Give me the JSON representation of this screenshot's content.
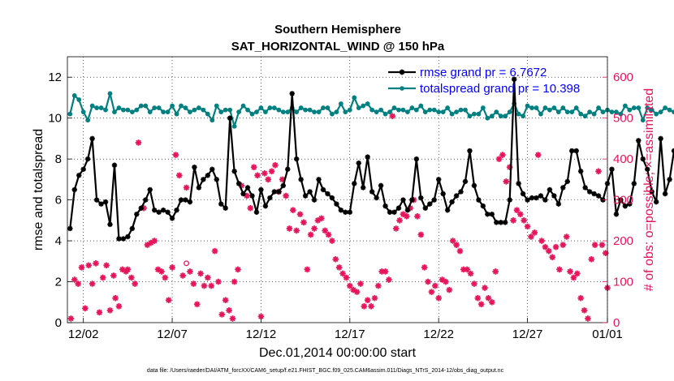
{
  "chart_data": {
    "type": "line",
    "title": "Southern Hemisphere",
    "subtitle": "SAT_HORIZONTAL_WIND @ 150 hPa",
    "xlabel": "Dec.01,2014 00:00:00 start",
    "ylabel": "rmse and totalspread",
    "ylabel_right": "# of obs: o=possible; ×=assimilated",
    "footnote": "data file: /Users/raeder/DAI/ATM_forcXX/CAM6_setup/f.e21.FHIST_BGC.f09_025.CAM6assim.011/Diags_NTrS_2014-12/obs_diag_output.nc",
    "xlim": [
      0.6,
      31.0
    ],
    "ylim": [
      0,
      13
    ],
    "ylim_right": [
      0,
      650
    ],
    "x_ticks": [
      1.5,
      6.5,
      11.5,
      16.5,
      21.5,
      26.5,
      31.0
    ],
    "x_tick_labels": [
      "12/02",
      "12/07",
      "12/12",
      "12/17",
      "12/22",
      "12/27",
      "01/01"
    ],
    "y_ticks": [
      0,
      2,
      4,
      6,
      8,
      10,
      12
    ],
    "y_ticks_right": [
      0,
      100,
      200,
      300,
      400,
      500,
      600
    ],
    "legend_position": "top-right",
    "series": [
      {
        "name": "rmse grand pr = 6.7672",
        "color": "#000000",
        "marker": "*",
        "x_start": 0.75,
        "x_step": 0.25,
        "values": [
          4.6,
          6.5,
          7.2,
          7.5,
          8.0,
          9.0,
          6.0,
          5.8,
          5.9,
          4.8,
          7.7,
          4.1,
          4.1,
          4.2,
          4.6,
          5.3,
          5.6,
          6.0,
          6.5,
          5.5,
          5.4,
          5.5,
          5.4,
          5.1,
          5.5,
          6.0,
          6.0,
          5.9,
          7.6,
          6.6,
          7.0,
          7.2,
          7.5,
          7.0,
          5.8,
          5.6,
          10.0,
          7.4,
          6.8,
          6.3,
          6.6,
          6.2,
          5.4,
          6.5,
          5.7,
          6.1,
          6.4,
          6.4,
          6.7,
          7.5,
          11.2,
          8.0,
          7.0,
          6.2,
          6.4,
          6.0,
          7.0,
          6.5,
          6.3,
          6.1,
          5.8,
          5.5,
          5.4,
          5.4,
          6.8,
          7.8,
          6.6,
          8.1,
          6.4,
          6.1,
          6.7,
          5.7,
          5.4,
          5.4,
          5.6,
          6.0,
          5.5,
          6.0,
          8.0,
          6.1,
          5.6,
          5.8,
          6.0,
          7.0,
          6.3,
          5.5,
          5.9,
          6.2,
          6.4,
          6.9,
          8.4,
          6.7,
          6.0,
          5.7,
          5.3,
          5.3,
          4.9,
          4.9,
          4.9,
          6.0,
          11.9,
          6.8,
          6.3,
          6.0,
          6.1,
          6.1,
          6.2,
          6.0,
          6.5,
          6.2,
          5.8,
          6.6,
          6.9,
          8.4,
          8.4,
          7.4,
          6.6,
          6.4,
          6.3,
          6.2,
          6.0,
          6.8,
          7.5,
          5.3,
          6.0,
          5.7,
          5.8,
          6.8,
          8.9,
          8.0,
          7.5,
          6.4,
          5.9,
          9.0,
          6.3,
          7.0,
          8.4,
          7.8,
          12.2,
          7.4,
          6.8,
          6.3,
          7.5,
          6.8,
          6.5,
          6.8,
          7.1,
          6.5,
          6.3,
          5.7,
          5.5,
          5.6,
          5.5,
          5.3,
          5.3,
          5.5,
          5.7,
          5.9,
          6.3,
          6.8,
          6.5,
          6.0,
          7.8,
          6.5,
          7.2
        ]
      },
      {
        "name": "totalspread grand pr = 10.398",
        "color": "#008080",
        "marker": "o",
        "x_start": 0.75,
        "x_step": 0.25,
        "values": [
          10.2,
          11.1,
          10.9,
          10.3,
          9.9,
          10.6,
          10.5,
          10.5,
          10.4,
          11.2,
          10.3,
          10.5,
          10.4,
          10.4,
          10.3,
          10.4,
          10.6,
          10.6,
          10.3,
          10.5,
          10.5,
          10.3,
          10.3,
          10.6,
          10.2,
          10.6,
          10.5,
          10.3,
          10.4,
          10.5,
          10.4,
          10.2,
          9.9,
          10.6,
          10.3,
          10.4,
          10.4,
          9.6,
          10.3,
          10.6,
          10.4,
          10.2,
          10.3,
          10.5,
          10.3,
          10.5,
          10.5,
          10.4,
          10.3,
          10.3,
          10.5,
          10.3,
          10.5,
          10.4,
          10.4,
          10.3,
          10.3,
          10.5,
          10.5,
          10.2,
          10.3,
          10.7,
          10.3,
          10.4,
          11.0,
          10.5,
          10.6,
          10.7,
          10.4,
          10.3,
          10.4,
          10.2,
          10.3,
          10.5,
          10.4,
          10.4,
          10.3,
          10.5,
          10.4,
          10.6,
          10.3,
          10.4,
          10.4,
          10.3,
          10.3,
          10.5,
          10.2,
          10.3,
          10.4,
          10.4,
          10.1,
          10.2,
          10.2,
          10.5,
          10.0,
          10.1,
          10.3,
          10.1,
          10.1,
          10.3,
          10.7,
          10.2,
          10.1,
          10.6,
          10.5,
          10.5,
          10.2,
          10.5,
          10.4,
          10.5,
          10.3,
          10.5,
          10.3,
          10.3,
          10.5,
          10.2,
          10.1,
          10.3,
          10.2,
          10.5,
          10.3,
          10.4,
          10.3,
          10.3,
          10.2,
          10.6,
          10.4,
          10.5,
          10.5,
          9.9,
          10.5,
          10.4,
          10.2,
          10.3,
          10.5,
          10.4,
          10.3,
          10.5,
          10.3,
          10.3,
          10.4,
          10.2,
          10.3,
          10.5,
          10.3,
          10.5,
          10.4,
          9.9,
          10.4,
          10.2,
          10.4,
          10.4,
          10.5,
          10.4,
          10.3,
          10.4,
          10.5,
          10.4,
          10.3,
          10.5,
          10.4,
          10.4,
          10.2,
          10.3,
          10.4
        ]
      },
      {
        "name": "number of observations assimilated",
        "color": "#e6155a",
        "marker": "x",
        "axis": "right",
        "points": [
          [
            0.8,
            10
          ],
          [
            1.0,
            105
          ],
          [
            1.2,
            95
          ],
          [
            1.4,
            135
          ],
          [
            1.6,
            35
          ],
          [
            1.8,
            140
          ],
          [
            2.0,
            95
          ],
          [
            2.2,
            145
          ],
          [
            2.4,
            25
          ],
          [
            2.6,
            110
          ],
          [
            2.8,
            140
          ],
          [
            3.0,
            30
          ],
          [
            3.2,
            115
          ],
          [
            3.3,
            60
          ],
          [
            3.5,
            40
          ],
          [
            3.7,
            130
          ],
          [
            3.9,
            125
          ],
          [
            4.0,
            130
          ],
          [
            4.2,
            110
          ],
          [
            4.4,
            95
          ],
          [
            4.6,
            440
          ],
          [
            4.9,
            280
          ],
          [
            5.1,
            190
          ],
          [
            5.3,
            195
          ],
          [
            5.5,
            200
          ],
          [
            5.7,
            130
          ],
          [
            5.9,
            125
          ],
          [
            6.1,
            110
          ],
          [
            6.3,
            55
          ],
          [
            6.5,
            135
          ],
          [
            6.7,
            410
          ],
          [
            6.9,
            360
          ],
          [
            7.1,
            115
          ],
          [
            7.3,
            330
          ],
          [
            7.5,
            125
          ],
          [
            7.7,
            95
          ],
          [
            7.9,
            45
          ],
          [
            8.1,
            120
          ],
          [
            8.3,
            90
          ],
          [
            8.5,
            110
          ],
          [
            8.7,
            90
          ],
          [
            8.9,
            175
          ],
          [
            9.1,
            100
          ],
          [
            9.3,
            20
          ],
          [
            9.5,
            55
          ],
          [
            9.7,
            30
          ],
          [
            9.9,
            10
          ],
          [
            10.0,
            100
          ],
          [
            10.2,
            130
          ],
          [
            10.4,
            335
          ],
          [
            10.7,
            310
          ],
          [
            10.9,
            280
          ],
          [
            11.1,
            380
          ],
          [
            11.3,
            360
          ],
          [
            11.5,
            15
          ],
          [
            11.7,
            365
          ],
          [
            11.9,
            350
          ],
          [
            12.1,
            370
          ],
          [
            12.3,
            385
          ],
          [
            12.5,
            320
          ],
          [
            12.7,
            350
          ],
          [
            12.9,
            310
          ],
          [
            13.1,
            230
          ],
          [
            13.3,
            275
          ],
          [
            13.5,
            225
          ],
          [
            13.7,
            265
          ],
          [
            13.9,
            245
          ],
          [
            14.1,
            130
          ],
          [
            14.3,
            215
          ],
          [
            14.5,
            230
          ],
          [
            14.7,
            250
          ],
          [
            14.9,
            255
          ],
          [
            15.1,
            225
          ],
          [
            15.3,
            215
          ],
          [
            15.5,
            200
          ],
          [
            15.7,
            155
          ],
          [
            15.9,
            135
          ],
          [
            16.1,
            120
          ],
          [
            16.3,
            110
          ],
          [
            16.5,
            90
          ],
          [
            16.7,
            80
          ],
          [
            16.9,
            75
          ],
          [
            17.1,
            95
          ],
          [
            17.3,
            40
          ],
          [
            17.5,
            55
          ],
          [
            17.7,
            40
          ],
          [
            17.9,
            60
          ],
          [
            18.1,
            90
          ],
          [
            18.3,
            125
          ],
          [
            18.5,
            125
          ],
          [
            18.7,
            105
          ],
          [
            18.9,
            505
          ],
          [
            19.1,
            230
          ],
          [
            19.3,
            250
          ],
          [
            19.5,
            265
          ],
          [
            19.7,
            260
          ],
          [
            19.9,
            280
          ],
          [
            20.1,
            300
          ],
          [
            20.3,
            260
          ],
          [
            20.5,
            215
          ],
          [
            20.7,
            135
          ],
          [
            20.9,
            100
          ],
          [
            21.1,
            75
          ],
          [
            21.3,
            90
          ],
          [
            21.5,
            60
          ],
          [
            21.7,
            105
          ],
          [
            21.9,
            100
          ],
          [
            22.1,
            80
          ],
          [
            22.3,
            200
          ],
          [
            22.5,
            190
          ],
          [
            22.7,
            175
          ],
          [
            22.9,
            130
          ],
          [
            23.1,
            130
          ],
          [
            23.3,
            120
          ],
          [
            23.5,
            95
          ],
          [
            23.7,
            60
          ],
          [
            23.9,
            45
          ],
          [
            24.1,
            85
          ],
          [
            24.3,
            60
          ],
          [
            24.5,
            50
          ],
          [
            24.7,
            125
          ],
          [
            24.9,
            400
          ],
          [
            25.1,
            410
          ],
          [
            25.3,
            345
          ],
          [
            25.5,
            380
          ],
          [
            25.7,
            250
          ],
          [
            25.9,
            275
          ],
          [
            26.1,
            265
          ],
          [
            26.3,
            250
          ],
          [
            26.5,
            235
          ],
          [
            26.7,
            210
          ],
          [
            26.9,
            220
          ],
          [
            27.1,
            410
          ],
          [
            27.3,
            200
          ],
          [
            27.5,
            185
          ],
          [
            27.7,
            175
          ],
          [
            27.9,
            160
          ],
          [
            28.1,
            185
          ],
          [
            28.3,
            130
          ],
          [
            28.5,
            190
          ],
          [
            28.7,
            210
          ],
          [
            28.9,
            125
          ],
          [
            29.1,
            110
          ],
          [
            29.3,
            120
          ],
          [
            29.5,
            60
          ],
          [
            29.7,
            30
          ],
          [
            29.9,
            10
          ],
          [
            30.1,
            155
          ],
          [
            30.3,
            190
          ],
          [
            30.5,
            370
          ],
          [
            30.7,
            190
          ],
          [
            30.9,
            170
          ],
          [
            31.0,
            85
          ]
        ]
      },
      {
        "name": "number of observations possible",
        "color": "#e6155a",
        "marker": "o",
        "axis": "right",
        "points": [
          [
            7.3,
            145
          ]
        ]
      }
    ]
  }
}
